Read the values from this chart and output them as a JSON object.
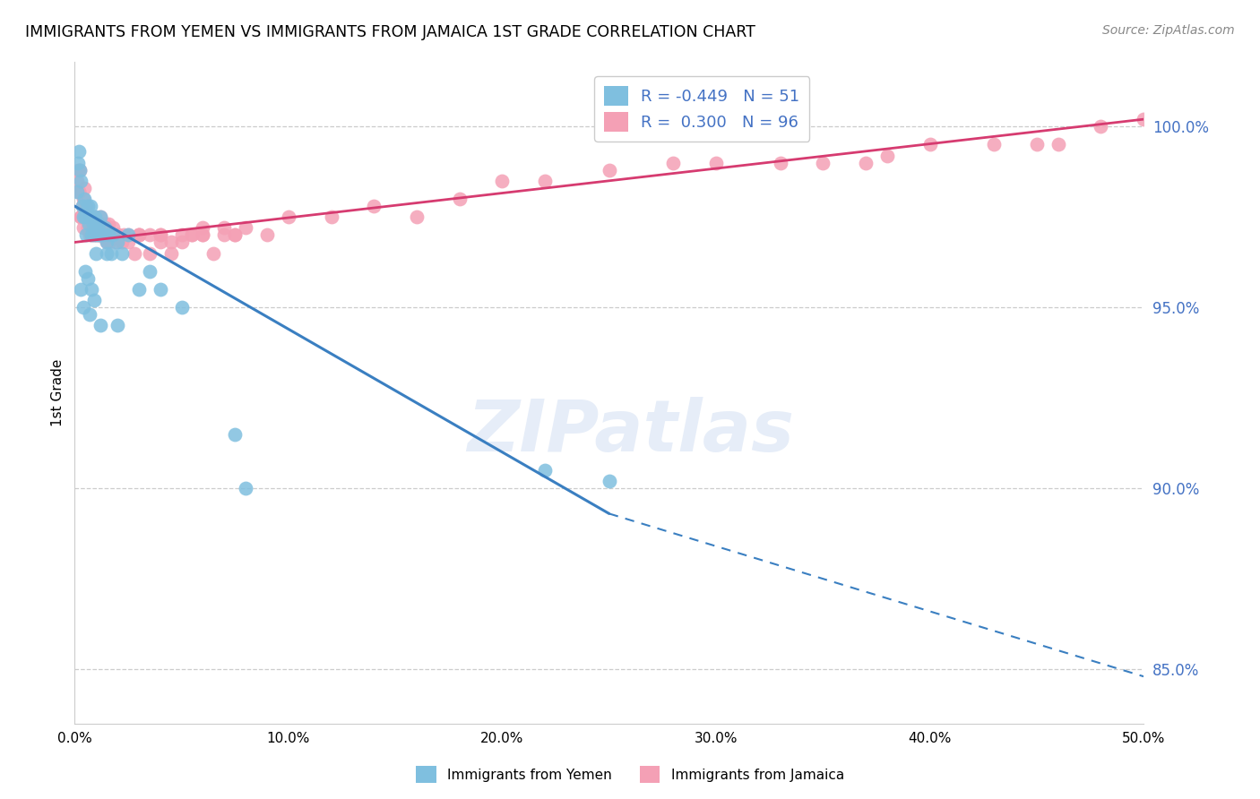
{
  "title": "IMMIGRANTS FROM YEMEN VS IMMIGRANTS FROM JAMAICA 1ST GRADE CORRELATION CHART",
  "source": "Source: ZipAtlas.com",
  "ylabel": "1st Grade",
  "xlim": [
    0.0,
    50.0
  ],
  "ylim": [
    83.5,
    101.8
  ],
  "yticks": [
    85.0,
    90.0,
    95.0,
    100.0
  ],
  "ytick_labels": [
    "85.0%",
    "90.0%",
    "95.0%",
    "100.0%"
  ],
  "xticks": [
    0.0,
    10.0,
    20.0,
    30.0,
    40.0,
    50.0
  ],
  "xtick_labels": [
    "0.0%",
    "10.0%",
    "20.0%",
    "30.0%",
    "40.0%",
    "50.0%"
  ],
  "legend_r_yemen": "-0.449",
  "legend_n_yemen": "51",
  "legend_r_jamaica": "0.300",
  "legend_n_jamaica": "96",
  "yemen_color": "#7fbfdf",
  "jamaica_color": "#f4a0b5",
  "yemen_line_color": "#3a7fc1",
  "jamaica_line_color": "#d63b70",
  "background_color": "#ffffff",
  "watermark": "ZIPatlas",
  "yemen_line_x0": 0.0,
  "yemen_line_y0": 97.8,
  "yemen_line_x1": 25.0,
  "yemen_line_y1": 89.3,
  "yemen_dash_x0": 25.0,
  "yemen_dash_y0": 89.3,
  "yemen_dash_x1": 50.0,
  "yemen_dash_y1": 84.8,
  "jamaica_line_x0": 0.0,
  "jamaica_line_y0": 96.8,
  "jamaica_line_x1": 50.0,
  "jamaica_line_y1": 100.2,
  "yemen_scatter_x": [
    0.1,
    0.15,
    0.2,
    0.25,
    0.3,
    0.35,
    0.4,
    0.45,
    0.5,
    0.55,
    0.6,
    0.65,
    0.7,
    0.75,
    0.8,
    0.85,
    0.9,
    0.95,
    1.0,
    1.05,
    1.1,
    1.15,
    1.2,
    1.3,
    1.4,
    1.5,
    1.6,
    1.7,
    1.8,
    2.0,
    2.2,
    2.5,
    3.0,
    3.5,
    4.0,
    5.0,
    1.0,
    0.5,
    0.6,
    0.8,
    2.0,
    1.5,
    0.3,
    0.4,
    0.7,
    0.9,
    1.2,
    7.5,
    8.0,
    22.0,
    25.0
  ],
  "yemen_scatter_y": [
    98.2,
    99.0,
    99.3,
    98.8,
    98.5,
    97.8,
    97.5,
    98.0,
    97.5,
    97.0,
    97.8,
    97.3,
    97.5,
    97.8,
    97.0,
    97.3,
    97.0,
    97.5,
    97.2,
    97.0,
    97.3,
    97.0,
    97.5,
    97.0,
    97.2,
    96.8,
    97.0,
    96.5,
    97.0,
    96.8,
    96.5,
    97.0,
    95.5,
    96.0,
    95.5,
    95.0,
    96.5,
    96.0,
    95.8,
    95.5,
    94.5,
    96.5,
    95.5,
    95.0,
    94.8,
    95.2,
    94.5,
    91.5,
    90.0,
    90.5,
    90.2
  ],
  "jamaica_scatter_x": [
    0.1,
    0.15,
    0.2,
    0.25,
    0.3,
    0.35,
    0.4,
    0.45,
    0.5,
    0.55,
    0.6,
    0.65,
    0.7,
    0.75,
    0.8,
    0.85,
    0.9,
    0.95,
    1.0,
    1.1,
    1.2,
    1.3,
    1.4,
    1.5,
    1.6,
    1.7,
    1.8,
    1.9,
    2.0,
    2.2,
    2.5,
    2.8,
    3.0,
    3.5,
    4.0,
    4.5,
    5.0,
    5.5,
    6.0,
    6.5,
    7.0,
    7.5,
    8.0,
    0.5,
    0.6,
    0.8,
    1.0,
    1.2,
    1.5,
    2.0,
    2.5,
    3.0,
    4.0,
    5.0,
    6.0,
    0.3,
    0.4,
    0.7,
    0.9,
    1.1,
    1.6,
    2.3,
    3.5,
    4.5,
    6.0,
    7.5,
    0.2,
    0.5,
    1.0,
    1.5,
    2.0,
    3.0,
    4.0,
    5.5,
    7.0,
    9.0,
    10.0,
    12.0,
    14.0,
    16.0,
    18.0,
    20.0,
    25.0,
    30.0,
    35.0,
    40.0,
    45.0,
    48.0,
    50.0,
    22.0,
    28.0,
    33.0,
    38.0,
    43.0,
    46.0,
    37.0
  ],
  "jamaica_scatter_y": [
    98.5,
    98.8,
    98.2,
    98.8,
    97.5,
    97.8,
    98.0,
    98.3,
    97.5,
    97.8,
    97.2,
    97.5,
    97.2,
    97.5,
    97.2,
    97.5,
    97.0,
    97.3,
    97.2,
    97.0,
    97.5,
    97.0,
    97.3,
    97.0,
    97.3,
    97.0,
    97.2,
    96.8,
    97.0,
    96.8,
    97.0,
    96.5,
    97.0,
    96.5,
    97.0,
    96.5,
    96.8,
    97.0,
    97.2,
    96.5,
    97.0,
    97.0,
    97.2,
    97.5,
    97.2,
    97.0,
    97.2,
    97.0,
    97.2,
    97.0,
    96.8,
    97.0,
    96.8,
    97.0,
    97.0,
    97.5,
    97.2,
    97.0,
    97.2,
    97.0,
    96.8,
    97.0,
    97.0,
    96.8,
    97.0,
    97.0,
    98.2,
    97.8,
    97.0,
    96.8,
    97.0,
    97.0,
    97.0,
    97.0,
    97.2,
    97.0,
    97.5,
    97.5,
    97.8,
    97.5,
    98.0,
    98.5,
    98.8,
    99.0,
    99.0,
    99.5,
    99.5,
    100.0,
    100.2,
    98.5,
    99.0,
    99.0,
    99.2,
    99.5,
    99.5,
    99.0
  ]
}
